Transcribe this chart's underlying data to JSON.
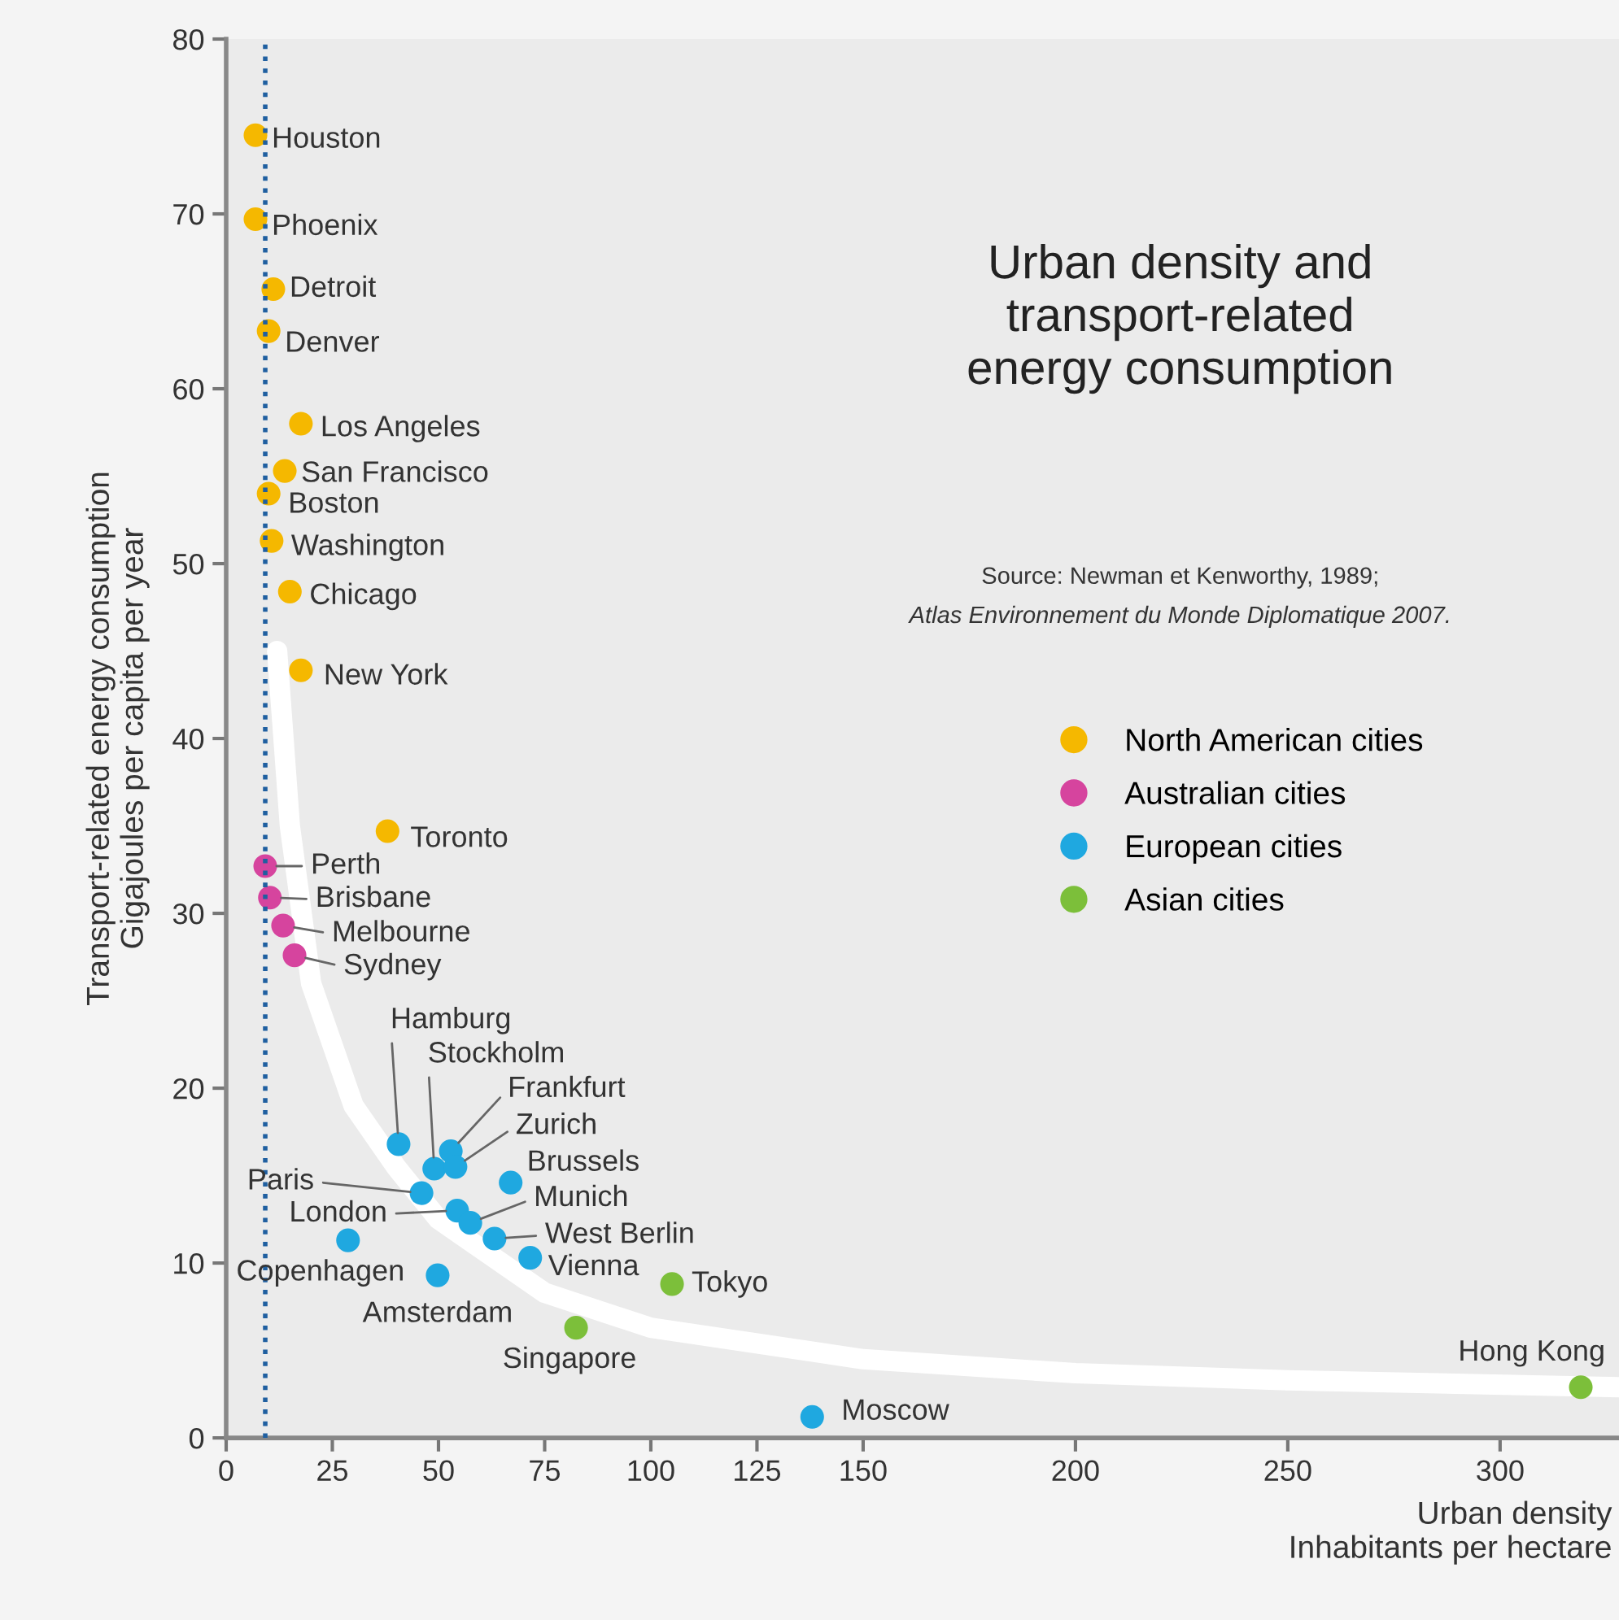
{
  "chart_data": {
    "type": "scatter",
    "title": "Urban density and\ntransport-related\nenergy consumption",
    "xlabel": "Urban density\nInhabitants per hectare",
    "ylabel": "Transport-related energy consumption\nGigajoules per capita per year",
    "xlim": [
      0,
      328
    ],
    "xticks": [
      0,
      25,
      50,
      75,
      100,
      125,
      150,
      200,
      250,
      300
    ],
    "ylim": [
      0,
      80
    ],
    "yticks": [
      0,
      10,
      20,
      30,
      40,
      50,
      60,
      70,
      80
    ],
    "grid": false,
    "legend": "right",
    "marker": "circle",
    "series": [
      {
        "name": "North American cities",
        "color": "#f5b800",
        "x": [
          6.9,
          6.9,
          11.1,
          10,
          17.6,
          13.8,
          10,
          10.7,
          15,
          17.6,
          38
        ],
        "values": [
          74.5,
          69.7,
          65.7,
          63.3,
          58,
          55.3,
          54,
          51.3,
          48.4,
          43.9,
          34.7
        ]
      },
      {
        "name": "Australian cities",
        "color": "#d6449e",
        "x": [
          9.2,
          10.3,
          13.4,
          16.1
        ],
        "values": [
          32.7,
          30.9,
          29.3,
          27.6
        ]
      },
      {
        "name": "European cities",
        "color": "#1fa8e0",
        "x": [
          40.6,
          49,
          52.9,
          54,
          67,
          46,
          54.4,
          57.5,
          63.2,
          71.6,
          28.7,
          49.8,
          138
        ],
        "values": [
          16.8,
          15.4,
          16.4,
          15.5,
          14.6,
          14,
          13,
          12.3,
          11.4,
          10.3,
          11.3,
          9.3,
          1.2
        ]
      },
      {
        "name": "Asian cities",
        "color": "#7cbf3a",
        "x": [
          82.4,
          105,
          319
        ],
        "values": [
          6.3,
          8.8,
          2.9
        ]
      },
      {
        "type": "line",
        "marker": "none",
        "color": "#ffffff",
        "x": [
          12,
          15,
          20,
          30,
          40,
          50,
          75,
          100,
          150,
          200,
          250,
          328
        ],
        "values": [
          45,
          35,
          26,
          19,
          15.5,
          12.5,
          8.3,
          6.3,
          4.5,
          3.7,
          3.3,
          2.9
        ]
      }
    ],
    "ref_lines": [
      {
        "axis": "x",
        "value": 9.2,
        "label": null,
        "color": "#1f5fa0",
        "line_style": "dotted"
      }
    ],
    "annotations": [
      "Source: Newman et Kenworthy, 1989;",
      "Atlas Environnement du Monde Diplomatique 2007.",
      {
        "text": "Houston",
        "x": 6.9,
        "y": 74.5
      },
      {
        "text": "Phoenix",
        "x": 6.9,
        "y": 69.7
      },
      {
        "text": "Detroit",
        "x": 11.1,
        "y": 65.7
      },
      {
        "text": "Denver",
        "x": 10,
        "y": 63.3
      },
      {
        "text": "Los Angeles",
        "x": 17.6,
        "y": 58
      },
      {
        "text": "San Francisco",
        "x": 13.8,
        "y": 55.3
      },
      {
        "text": "Boston",
        "x": 10,
        "y": 54
      },
      {
        "text": "Washington",
        "x": 10.7,
        "y": 51.3
      },
      {
        "text": "Chicago",
        "x": 15,
        "y": 48.4
      },
      {
        "text": "New York",
        "x": 17.6,
        "y": 43.9
      },
      {
        "text": "Toronto",
        "x": 38,
        "y": 34.7
      },
      {
        "text": "Perth",
        "x": 9.2,
        "y": 32.7
      },
      {
        "text": "Brisbane",
        "x": 10.3,
        "y": 30.9
      },
      {
        "text": "Melbourne",
        "x": 13.4,
        "y": 29.3
      },
      {
        "text": "Sydney",
        "x": 16.1,
        "y": 27.6
      },
      {
        "text": "Hamburg",
        "x": 40.6,
        "y": 16.8
      },
      {
        "text": "Stockholm",
        "x": 49,
        "y": 15.4
      },
      {
        "text": "Frankfurt",
        "x": 52.9,
        "y": 16.4
      },
      {
        "text": "Zurich",
        "x": 54,
        "y": 15.5
      },
      {
        "text": "Brussels",
        "x": 67,
        "y": 14.6
      },
      {
        "text": "Paris",
        "x": 46,
        "y": 14
      },
      {
        "text": "London",
        "x": 54.4,
        "y": 13
      },
      {
        "text": "Munich",
        "x": 57.5,
        "y": 12.3
      },
      {
        "text": "West Berlin",
        "x": 63.2,
        "y": 11.4
      },
      {
        "text": "Vienna",
        "x": 71.6,
        "y": 10.3
      },
      {
        "text": "Copenhagen",
        "x": 28.7,
        "y": 11.3
      },
      {
        "text": "Amsterdam",
        "x": 49.8,
        "y": 9.3
      },
      {
        "text": "Singapore",
        "x": 82.4,
        "y": 6.3
      },
      {
        "text": "Tokyo",
        "x": 105,
        "y": 8.8
      },
      {
        "text": "Moscow",
        "x": 138,
        "y": 1.2
      },
      {
        "text": "Hong Kong",
        "x": 319,
        "y": 2.9
      }
    ]
  }
}
